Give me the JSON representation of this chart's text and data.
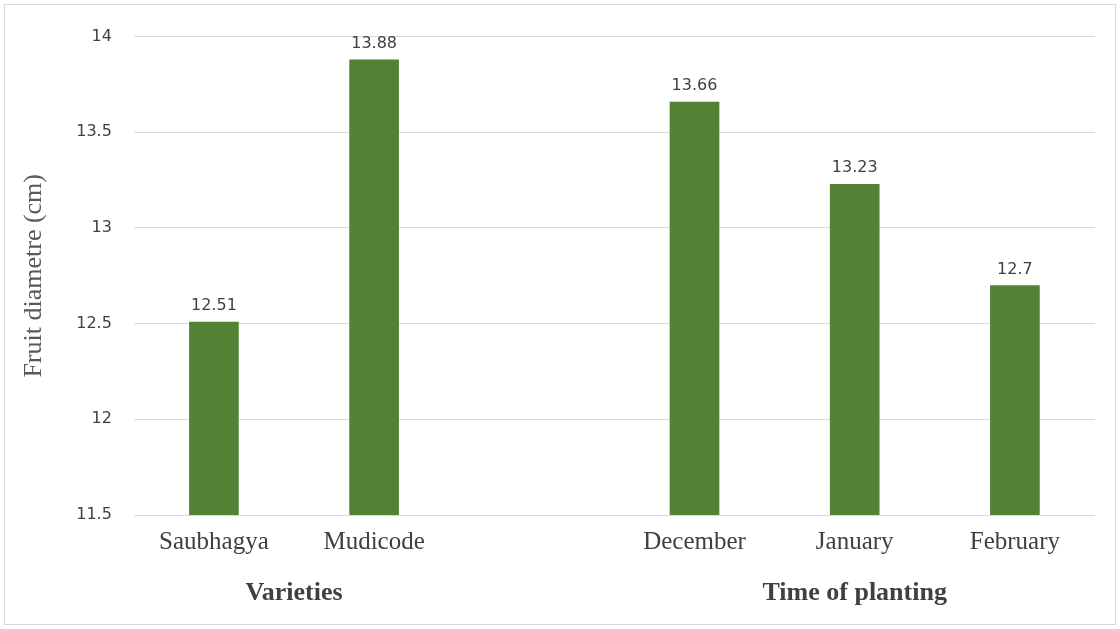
{
  "chart_data": {
    "type": "bar",
    "ylabel": "Fruit diametre (cm)",
    "categories": [
      "Saubhagya",
      "Mudicode",
      null,
      "December",
      "January",
      "February"
    ],
    "values": [
      12.51,
      13.88,
      null,
      13.66,
      13.23,
      12.7
    ],
    "color": "#548235",
    "ylim": [
      11.5,
      14
    ],
    "yticks": [
      11.5,
      12,
      12.5,
      13,
      13.5,
      14
    ],
    "grid": "y",
    "data_labels": true,
    "legend": false,
    "annotations": [
      "Varieties",
      "Time of planting"
    ]
  }
}
